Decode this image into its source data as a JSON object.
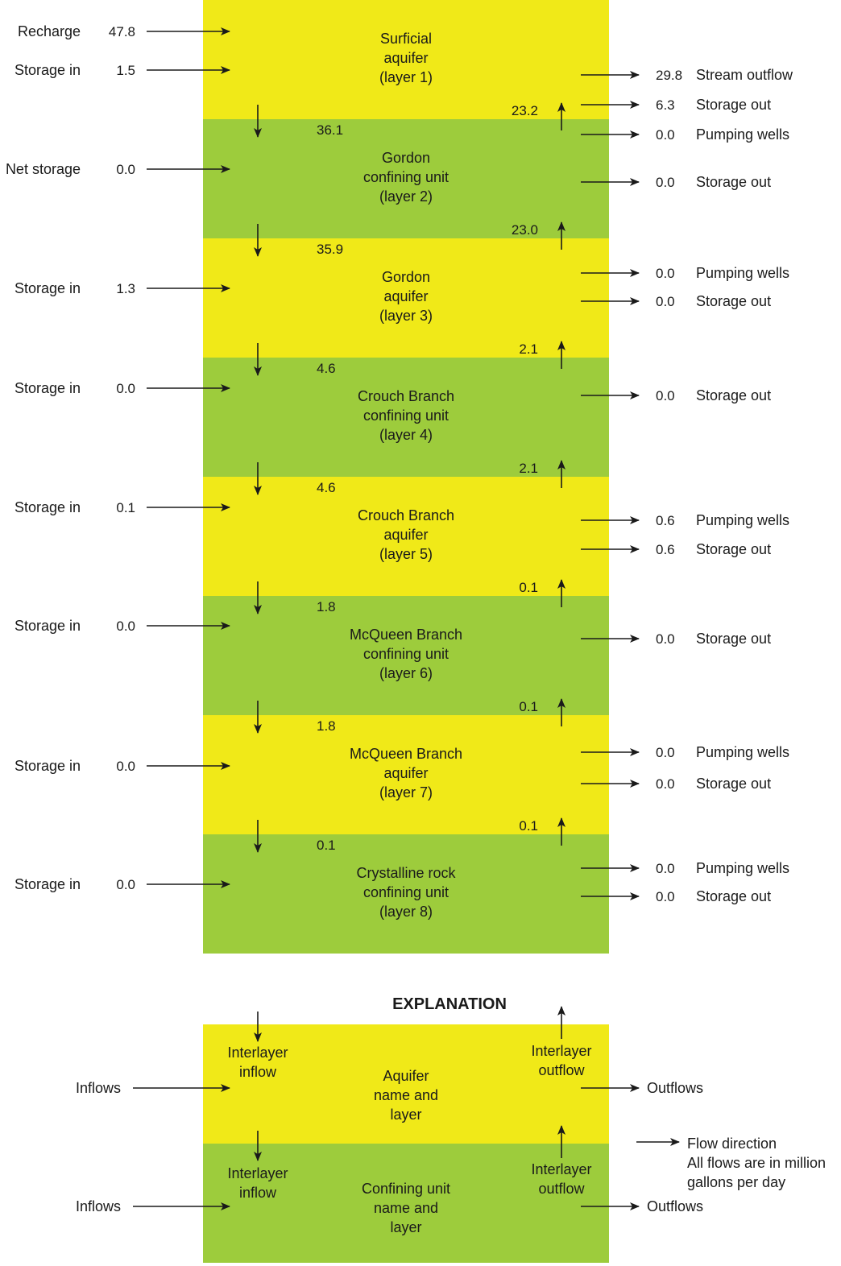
{
  "colors": {
    "aquifer": "#f0e918",
    "confining": "#9dcc3c",
    "arrow": "#1a1a1a"
  },
  "layers": [
    {
      "type": "aquifer",
      "name": [
        "Surficial",
        "aquifer",
        "(layer 1)"
      ],
      "inflows": [
        {
          "label": "Recharge",
          "value": "47.8"
        },
        {
          "label": "Storage in",
          "value": "1.5"
        }
      ],
      "outflows": [
        {
          "value": "29.8",
          "label": "Stream outflow"
        },
        {
          "value": "6.3",
          "label": "Storage out"
        }
      ]
    },
    {
      "type": "confining",
      "name": [
        "Gordon",
        "confining unit",
        "(layer 2)"
      ],
      "inflows": [
        {
          "label": "Net storage",
          "value": "0.0"
        }
      ],
      "outflows": [
        {
          "value": "0.0",
          "label": "Pumping wells"
        },
        {
          "value": "0.0",
          "label": "Storage out"
        }
      ]
    },
    {
      "type": "aquifer",
      "name": [
        "Gordon",
        "aquifer",
        "(layer 3)"
      ],
      "inflows": [
        {
          "label": "Storage in",
          "value": "1.3"
        }
      ],
      "outflows": [
        {
          "value": "0.0",
          "label": "Pumping wells"
        },
        {
          "value": "0.0",
          "label": "Storage out"
        }
      ]
    },
    {
      "type": "confining",
      "name": [
        "Crouch Branch",
        "confining unit",
        "(layer 4)"
      ],
      "inflows": [
        {
          "label": "Storage in",
          "value": "0.0"
        }
      ],
      "outflows": [
        {
          "value": "0.0",
          "label": "Storage out"
        }
      ]
    },
    {
      "type": "aquifer",
      "name": [
        "Crouch Branch",
        "aquifer",
        "(layer 5)"
      ],
      "inflows": [
        {
          "label": "Storage in",
          "value": "0.1"
        }
      ],
      "outflows": [
        {
          "value": "0.6",
          "label": "Pumping wells"
        },
        {
          "value": "0.6",
          "label": "Storage out"
        }
      ]
    },
    {
      "type": "confining",
      "name": [
        "McQueen Branch",
        "confining unit",
        "(layer 6)"
      ],
      "inflows": [
        {
          "label": "Storage in",
          "value": "0.0"
        }
      ],
      "outflows": [
        {
          "value": "0.0",
          "label": "Storage out"
        }
      ]
    },
    {
      "type": "aquifer",
      "name": [
        "McQueen Branch",
        "aquifer",
        "(layer 7)"
      ],
      "inflows": [
        {
          "label": "Storage in",
          "value": "0.0"
        }
      ],
      "outflows": [
        {
          "value": "0.0",
          "label": "Pumping wells"
        },
        {
          "value": "0.0",
          "label": "Storage out"
        }
      ]
    },
    {
      "type": "confining",
      "name": [
        "Crystalline rock",
        "confining unit",
        "(layer 8)"
      ],
      "inflows": [
        {
          "label": "Storage in",
          "value": "0.0"
        }
      ],
      "outflows": [
        {
          "value": "0.0",
          "label": "Pumping wells"
        },
        {
          "value": "0.0",
          "label": "Storage out"
        }
      ]
    }
  ],
  "interlayer": [
    {
      "down": "36.1",
      "up": "23.2"
    },
    {
      "down": "35.9",
      "up": "23.0"
    },
    {
      "down": "4.6",
      "up": "2.1"
    },
    {
      "down": "4.6",
      "up": "2.1"
    },
    {
      "down": "1.8",
      "up": "0.1"
    },
    {
      "down": "1.8",
      "up": "0.1"
    },
    {
      "down": "0.1",
      "up": "0.1"
    }
  ],
  "explanation": {
    "title": "EXPLANATION",
    "aquifer_name": [
      "Aquifer",
      "name and",
      "layer"
    ],
    "confining_name": [
      "Confining unit",
      "name and",
      "layer"
    ],
    "interlayer_inflow": [
      "Interlayer",
      "inflow"
    ],
    "interlayer_outflow": [
      "Interlayer",
      "outflow"
    ],
    "inflows_label": "Inflows",
    "outflows_label": "Outflows",
    "flow_direction": "Flow direction",
    "units_note": [
      "All flows are in million",
      "gallons per day"
    ]
  }
}
